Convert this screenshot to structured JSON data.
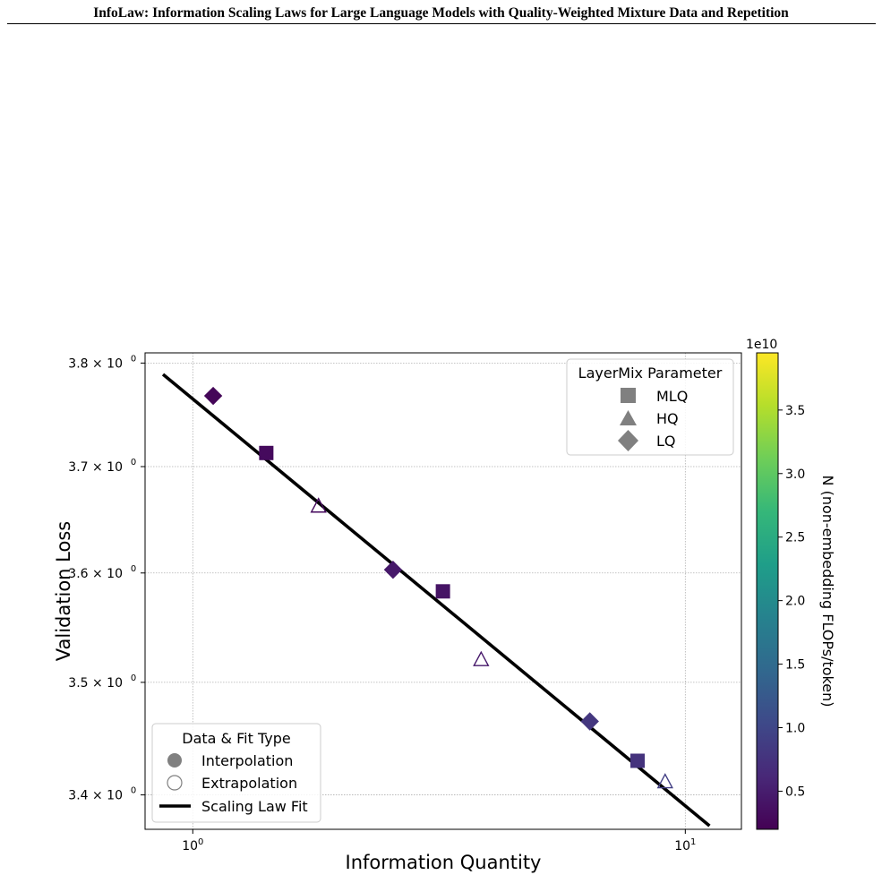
{
  "header": {
    "running_title": "InfoLaw: Information Scaling Laws for Large Language Models with Quality-Weighted Mixture Data and Repetition"
  },
  "caption": "",
  "colors": {
    "fit_line": "#000000",
    "grid": "#b0b0b0",
    "legend_marker": "#808080",
    "colormap": [
      "#440154",
      "#482878",
      "#3e4989",
      "#31688e",
      "#26828e",
      "#1f9e89",
      "#35b779",
      "#6ece58",
      "#b5de2b",
      "#fde725"
    ]
  },
  "chart_data": {
    "type": "scatter",
    "xlabel": "Information Quantity",
    "ylabel": "Validation Loss",
    "xscale": "log",
    "yscale": "log",
    "xlim": [
      0.8,
      13.0
    ],
    "ylim": [
      3.37,
      3.81
    ],
    "grid": true,
    "x_ticks": [
      {
        "value": 1,
        "label_base": "10",
        "label_exp": "0"
      },
      {
        "value": 10,
        "label_base": "10",
        "label_exp": "1"
      }
    ],
    "y_ticks": [
      {
        "value": 3.4,
        "label_base": "3.4 × 10",
        "label_exp": "0"
      },
      {
        "value": 3.5,
        "label_base": "3.5 × 10",
        "label_exp": "0"
      },
      {
        "value": 3.6,
        "label_base": "3.6 × 10",
        "label_exp": "0"
      },
      {
        "value": 3.7,
        "label_base": "3.7 × 10",
        "label_exp": "0"
      },
      {
        "value": 3.8,
        "label_base": "3.8 × 10",
        "label_exp": "0"
      }
    ],
    "points": [
      {
        "x": 1.1,
        "y": 3.768,
        "marker": "diamond",
        "filled": true,
        "n": 2500000000.0
      },
      {
        "x": 1.41,
        "y": 3.713,
        "marker": "square",
        "filled": true,
        "n": 3000000000.0
      },
      {
        "x": 1.8,
        "y": 3.662,
        "marker": "triangle",
        "filled": false,
        "n": 3000000000.0
      },
      {
        "x": 2.55,
        "y": 3.603,
        "marker": "diamond",
        "filled": true,
        "n": 4500000000.0
      },
      {
        "x": 3.22,
        "y": 3.583,
        "marker": "square",
        "filled": true,
        "n": 4000000000.0
      },
      {
        "x": 3.85,
        "y": 3.52,
        "marker": "triangle",
        "filled": false,
        "n": 4500000000.0
      },
      {
        "x": 6.4,
        "y": 3.465,
        "marker": "diamond",
        "filled": true,
        "n": 8000000000.0
      },
      {
        "x": 8.0,
        "y": 3.43,
        "marker": "square",
        "filled": true,
        "n": 7500000000.0
      },
      {
        "x": 9.1,
        "y": 3.411,
        "marker": "triangle",
        "filled": false,
        "n": 9000000000.0
      }
    ],
    "fit_line": {
      "x": [
        0.87,
        11.2
      ],
      "y": [
        3.789,
        3.373
      ]
    },
    "legends": [
      {
        "title": "LayerMix Parameter",
        "placement": "upper-right",
        "entries": [
          {
            "marker": "square",
            "label": "MLQ"
          },
          {
            "marker": "triangle",
            "label": "HQ"
          },
          {
            "marker": "diamond",
            "label": "LQ"
          }
        ]
      },
      {
        "title": "Data & Fit Type",
        "placement": "lower-left",
        "entries": [
          {
            "marker": "circle-filled",
            "label": "Interpolation"
          },
          {
            "marker": "circle-open",
            "label": "Extrapolation"
          },
          {
            "marker": "line",
            "label": "Scaling Law Fit"
          }
        ]
      }
    ],
    "colorbar": {
      "label": "N (non-embedding FLOPs/token)",
      "offset_text": "1e10",
      "range": [
        0.2,
        3.95
      ],
      "ticks": [
        {
          "value": 0.5,
          "label": "0.5"
        },
        {
          "value": 1.0,
          "label": "1.0"
        },
        {
          "value": 1.5,
          "label": "1.5"
        },
        {
          "value": 2.0,
          "label": "2.0"
        },
        {
          "value": 2.5,
          "label": "2.5"
        },
        {
          "value": 3.0,
          "label": "3.0"
        },
        {
          "value": 3.5,
          "label": "3.5"
        }
      ]
    }
  }
}
